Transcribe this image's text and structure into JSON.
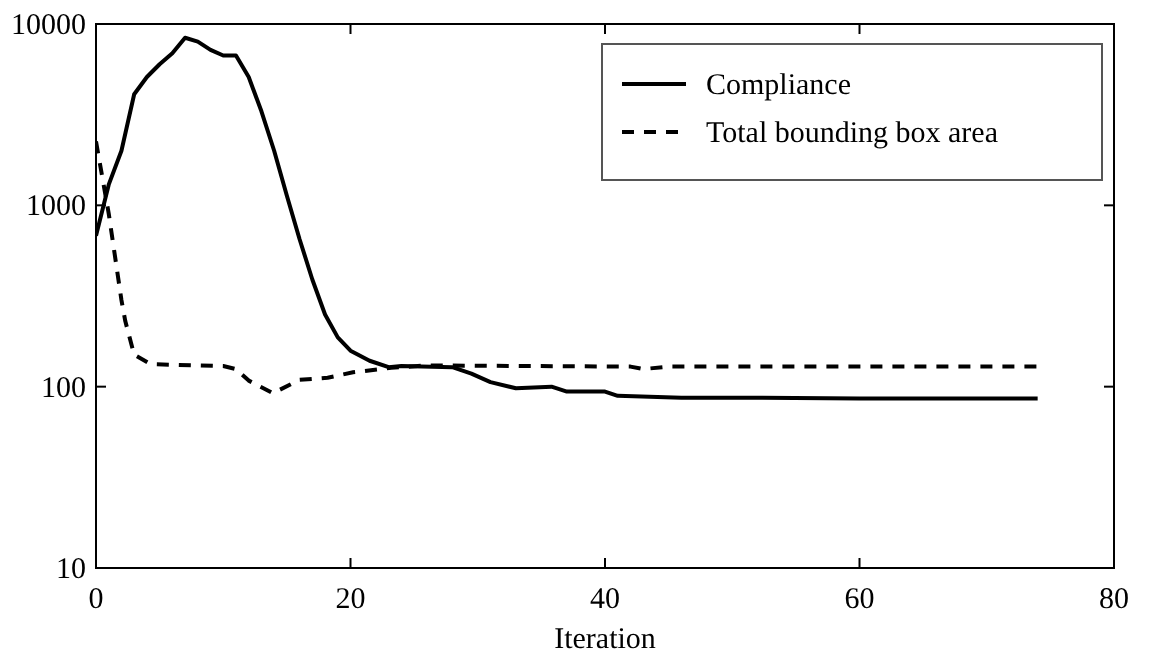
{
  "chart_data": {
    "type": "line",
    "xlabel": "Iteration",
    "xlim": [
      0,
      80
    ],
    "xticks": [
      0,
      20,
      40,
      60,
      80
    ],
    "ylim": [
      10,
      10000
    ],
    "yticks": [
      10,
      100,
      1000,
      10000
    ],
    "log": "y",
    "grid": false,
    "legend": "top right",
    "series": [
      {
        "name": "Compliance",
        "color": "#000000",
        "line_style": "solid",
        "x": [
          0,
          1,
          2,
          3,
          4,
          5,
          6,
          7,
          8,
          9,
          10,
          11,
          12,
          13,
          14,
          15,
          16,
          17,
          18,
          19,
          20,
          21.5,
          23,
          24,
          28,
          29.5,
          31,
          33,
          35.8,
          37,
          40,
          41,
          46,
          51,
          60,
          74
        ],
        "values": [
          680,
          1300,
          2000,
          4100,
          5100,
          6000,
          6900,
          8400,
          8000,
          7200,
          6700,
          6700,
          5100,
          3300,
          2000,
          1130,
          650,
          390,
          250,
          187,
          158,
          139,
          128,
          130,
          128,
          118,
          106,
          98,
          100,
          94,
          94,
          89,
          87,
          87,
          86,
          86
        ]
      },
      {
        "name": "Total bounding box area",
        "color": "#000000",
        "line_style": "dashed",
        "x": [
          0,
          1,
          2,
          2.3,
          3,
          4.3,
          10,
          11,
          12,
          13.9,
          16,
          18.2,
          20.2,
          23.2,
          26,
          42,
          43,
          45,
          74
        ],
        "values": [
          2250,
          900,
          300,
          230,
          150,
          133,
          130,
          125,
          108,
          92,
          109,
          112,
          120,
          127,
          131,
          129,
          125,
          129,
          129
        ]
      }
    ]
  }
}
